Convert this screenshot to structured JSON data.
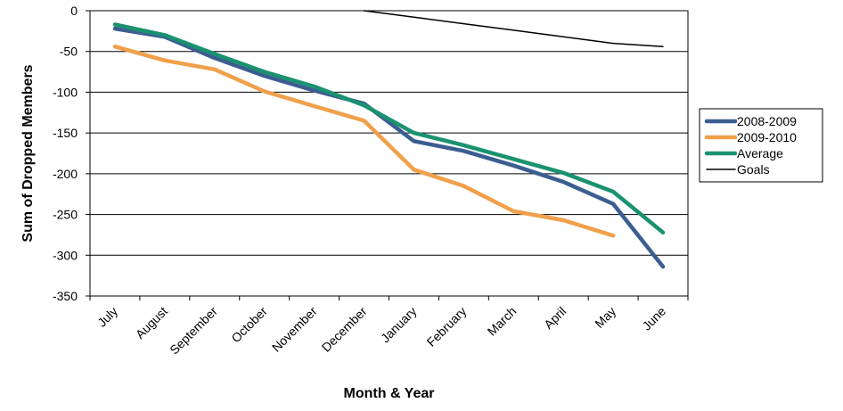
{
  "chart_data": {
    "type": "line",
    "title": "",
    "xlabel": "Month & Year",
    "ylabel": "Sum of Dropped Members",
    "ylim": [
      -350,
      0
    ],
    "yticks": [
      0,
      -50,
      -100,
      -150,
      -200,
      -250,
      -300,
      -350
    ],
    "grid": "horizontal",
    "legend_position": "right",
    "categories": [
      "July",
      "August",
      "September",
      "October",
      "November",
      "December",
      "January",
      "February",
      "March",
      "April",
      "May",
      "June"
    ],
    "series": [
      {
        "name": "2008-2009",
        "color": "#3b5e91",
        "values": [
          -22,
          -32,
          -58,
          -80,
          -98,
          -114,
          -160,
          -172,
          -190,
          -210,
          -237,
          -314
        ]
      },
      {
        "name": "2009-2010",
        "color": "#f0a04b",
        "values": [
          -44,
          -61,
          -72,
          -99,
          -117,
          -135,
          -195,
          -215,
          -246,
          -257,
          -276,
          null
        ]
      },
      {
        "name": "Average",
        "color": "#1a9270",
        "values": [
          -17,
          -30,
          -53,
          -75,
          -93,
          -116,
          -150,
          -165,
          -182,
          -199,
          -222,
          -272
        ]
      },
      {
        "name": "Goals",
        "color": "#000000",
        "values": [
          null,
          null,
          null,
          null,
          null,
          0,
          -8,
          -16,
          -24,
          -32,
          -40,
          -44
        ]
      }
    ]
  }
}
